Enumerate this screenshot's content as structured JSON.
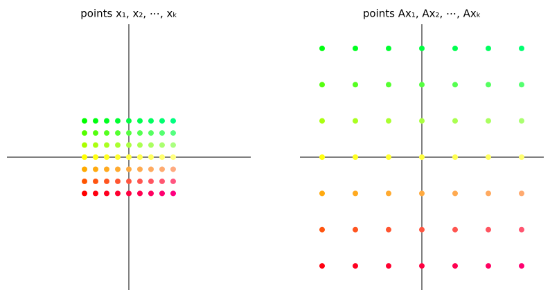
{
  "chart_data": [
    {
      "type": "scatter",
      "title": "points x₁, x₂, ⋯, xₖ",
      "xlim": [
        -5.5,
        5.5
      ],
      "ylim": [
        -5.5,
        5.5
      ],
      "x": [
        -2,
        -1.5,
        -1,
        -0.5,
        0,
        0.5,
        1,
        1.5,
        2,
        -2,
        -1.5,
        -1,
        -0.5,
        0,
        0.5,
        1,
        1.5,
        2,
        -2,
        -1.5,
        -1,
        -0.5,
        0,
        0.5,
        1,
        1.5,
        2,
        -2,
        -1.5,
        -1,
        -0.5,
        0,
        0.5,
        1,
        1.5,
        2,
        -2,
        -1.5,
        -1,
        -0.5,
        0,
        0.5,
        1,
        1.5,
        2,
        -2,
        -1.5,
        -1,
        -0.5,
        0,
        0.5,
        1,
        1.5,
        2,
        -2,
        -1.5,
        -1,
        -0.5,
        0,
        0.5,
        1,
        1.5,
        2
      ],
      "y": [
        1.5,
        1.5,
        1.5,
        1.5,
        1.5,
        1.5,
        1.5,
        1.5,
        1.5,
        1,
        1,
        1,
        1,
        1,
        1,
        1,
        1,
        1,
        0.5,
        0.5,
        0.5,
        0.5,
        0.5,
        0.5,
        0.5,
        0.5,
        0.5,
        0,
        0,
        0,
        0,
        0,
        0,
        0,
        0,
        0,
        -0.5,
        -0.5,
        -0.5,
        -0.5,
        -0.5,
        -0.5,
        -0.5,
        -0.5,
        -0.5,
        -1,
        -1,
        -1,
        -1,
        -1,
        -1,
        -1,
        -1,
        -1,
        -1.5,
        -1.5,
        -1.5,
        -1.5,
        -1.5,
        -1.5,
        -1.5,
        -1.5,
        -1.5
      ],
      "colors": [
        "#00ff00",
        "#00ff10",
        "#00ff20",
        "#00ff30",
        "#00ff40",
        "#00ff50",
        "#00ff60",
        "#00ff70",
        "#00ff80",
        "#55ff00",
        "#55ff10",
        "#55ff20",
        "#55ff30",
        "#55ff40",
        "#55ff50",
        "#55ff60",
        "#55ff70",
        "#55ff80",
        "#aaff00",
        "#aaff10",
        "#aaff20",
        "#aaff30",
        "#aaff40",
        "#aaff50",
        "#aaff60",
        "#aaff70",
        "#aaff80",
        "#ffff00",
        "#ffff10",
        "#ffff20",
        "#ffff30",
        "#ffff40",
        "#ffff50",
        "#ffff60",
        "#ffff70",
        "#ffff80",
        "#ffaa00",
        "#ffaa10",
        "#ffaa20",
        "#ffaa30",
        "#ffaa40",
        "#ffaa50",
        "#ffaa60",
        "#ffaa70",
        "#ffaa80",
        "#ff5500",
        "#ff5510",
        "#ff5520",
        "#ff5530",
        "#ff5540",
        "#ff5550",
        "#ff5560",
        "#ff5570",
        "#ff5580",
        "#ff0000",
        "#ff0010",
        "#ff0020",
        "#ff0030",
        "#ff0040",
        "#ff0050",
        "#ff0060",
        "#ff0070",
        "#ff0080"
      ]
    },
    {
      "type": "scatter",
      "title": "points Ax₁, Ax₂, ⋯, Axₖ",
      "xlim": [
        -5.5,
        5.5
      ],
      "ylim": [
        -5.5,
        5.5
      ],
      "x": [
        -4.5,
        -3,
        -1.5,
        0,
        1.5,
        3,
        4.5,
        -4.5,
        -3,
        -1.5,
        0,
        1.5,
        3,
        4.5,
        -4.5,
        -3,
        -1.5,
        0,
        1.5,
        3,
        4.5,
        -4.5,
        -3,
        -1.5,
        0,
        1.5,
        3,
        4.5,
        -4.5,
        -3,
        -1.5,
        0,
        1.5,
        3,
        4.5,
        -4.5,
        -3,
        -1.5,
        0,
        1.5,
        3,
        4.5,
        -4.5,
        -3,
        -1.5,
        0,
        1.5,
        3,
        4.5
      ],
      "y": [
        4.5,
        4.5,
        4.5,
        4.5,
        4.5,
        4.5,
        4.5,
        3,
        3,
        3,
        3,
        3,
        3,
        3,
        1.5,
        1.5,
        1.5,
        1.5,
        1.5,
        1.5,
        1.5,
        0,
        0,
        0,
        0,
        0,
        0,
        0,
        -1.5,
        -1.5,
        -1.5,
        -1.5,
        -1.5,
        -1.5,
        -1.5,
        -3,
        -3,
        -3,
        -3,
        -3,
        -3,
        -3,
        -4.5,
        -4.5,
        -4.5,
        -4.5,
        -4.5,
        -4.5,
        -4.5
      ],
      "colors": [
        "#00ff10",
        "#00ff20",
        "#00ff30",
        "#00ff40",
        "#00ff50",
        "#00ff60",
        "#00ff70",
        "#55ff10",
        "#55ff20",
        "#55ff30",
        "#55ff40",
        "#55ff50",
        "#55ff60",
        "#55ff70",
        "#aaff10",
        "#aaff20",
        "#aaff30",
        "#aaff40",
        "#aaff50",
        "#aaff60",
        "#aaff70",
        "#ffff10",
        "#ffff20",
        "#ffff30",
        "#ffff40",
        "#ffff50",
        "#ffff60",
        "#ffff70",
        "#ffaa10",
        "#ffaa20",
        "#ffaa30",
        "#ffaa40",
        "#ffaa50",
        "#ffaa60",
        "#ffaa70",
        "#ff5510",
        "#ff5520",
        "#ff5530",
        "#ff5540",
        "#ff5550",
        "#ff5560",
        "#ff5570",
        "#ff0010",
        "#ff0020",
        "#ff0030",
        "#ff0040",
        "#ff0050",
        "#ff0060",
        "#ff0070"
      ]
    }
  ]
}
